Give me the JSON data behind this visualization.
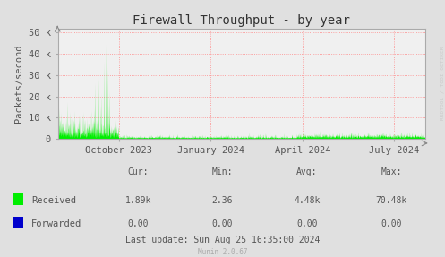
{
  "title": "Firewall Throughput - by year",
  "ylabel": "Packets/second",
  "bg_color": "#e0e0e0",
  "plot_bg_color": "#f0f0f0",
  "grid_color": "#ff8888",
  "border_color": "#aaaaaa",
  "ytick_labels": [
    "0",
    "10 k",
    "20 k",
    "30 k",
    "40 k",
    "50 k"
  ],
  "ytick_values": [
    0,
    10000,
    20000,
    30000,
    40000,
    50000
  ],
  "ylim": [
    0,
    52000
  ],
  "xtick_labels": [
    "October 2023",
    "January 2024",
    "April 2024",
    "July 2024"
  ],
  "x_tick_pos": [
    0.1667,
    0.4167,
    0.6667,
    0.9167
  ],
  "legend_received_color": "#00ee00",
  "legend_forwarded_color": "#0000cc",
  "stats_cur_received": "1.89k",
  "stats_min_received": "2.36",
  "stats_avg_received": "4.48k",
  "stats_max_received": "70.48k",
  "stats_cur_forwarded": "0.00",
  "stats_min_forwarded": "0.00",
  "stats_avg_forwarded": "0.00",
  "stats_max_forwarded": "0.00",
  "last_update": "Last update: Sun Aug 25 16:35:00 2024",
  "munin_version": "Munin 2.0.67",
  "rrdtool_label": "RRDTOOL / TOBI OETIKER",
  "title_fontsize": 10,
  "axis_fontsize": 7.5,
  "stats_fontsize": 7,
  "legend_fontsize": 7.5
}
